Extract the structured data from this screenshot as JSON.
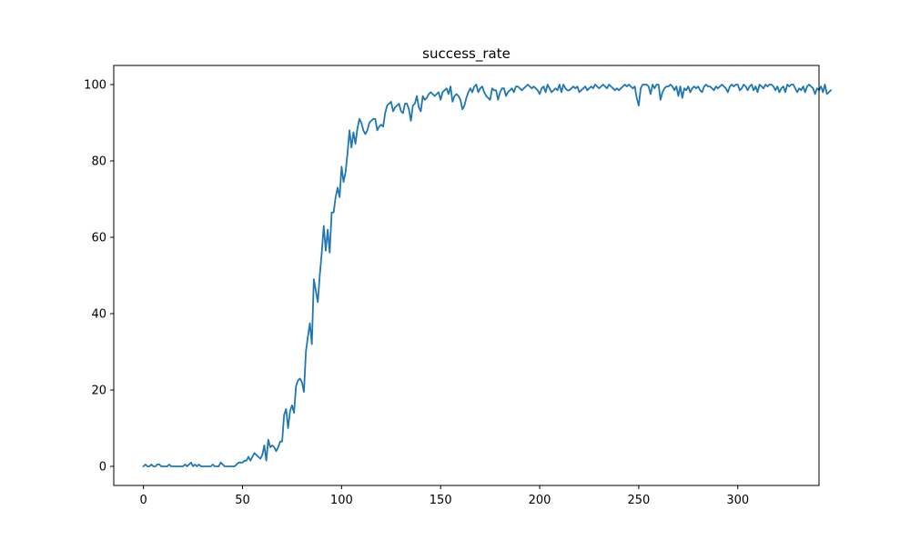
{
  "chart_data": {
    "type": "line",
    "title": "success_rate",
    "xlabel": "",
    "ylabel": "",
    "xlim": [
      -15,
      341
    ],
    "ylim": [
      -5,
      105
    ],
    "x_ticks": [
      0,
      50,
      100,
      150,
      200,
      250,
      300
    ],
    "y_ticks": [
      0,
      20,
      40,
      60,
      80,
      100
    ],
    "grid": false,
    "line_color": "#1f77b4",
    "series": [
      {
        "x_start": 0,
        "x_step": 1,
        "values": [
          0.0,
          0.5,
          0.0,
          0.0,
          0.5,
          0.0,
          0.0,
          0.5,
          0.5,
          0.0,
          0.0,
          0.0,
          0.0,
          0.5,
          0.0,
          0.0,
          0.0,
          0.0,
          0.0,
          0.0,
          0.0,
          0.5,
          0.0,
          0.5,
          1.0,
          0.0,
          0.5,
          0.0,
          0.5,
          0.0,
          0.0,
          0.0,
          0.0,
          0.0,
          0.0,
          0.5,
          0.0,
          0.0,
          0.0,
          1.0,
          0.5,
          0.0,
          0.0,
          0.0,
          0.0,
          0.0,
          0.0,
          0.5,
          1.0,
          1.0,
          1.0,
          1.5,
          1.5,
          2.5,
          1.5,
          2.5,
          3.5,
          3.0,
          2.5,
          2.0,
          3.0,
          5.5,
          1.5,
          7.0,
          5.0,
          5.5,
          5.0,
          4.0,
          5.0,
          6.5,
          6.5,
          13.5,
          15.0,
          10.0,
          14.5,
          16.0,
          14.0,
          21.0,
          22.5,
          23.0,
          22.0,
          19.5,
          30.0,
          34.0,
          37.5,
          32.0,
          49.0,
          46.0,
          43.0,
          50.0,
          56.0,
          63.0,
          56.5,
          62.0,
          56.0,
          66.5,
          66.5,
          70.5,
          73.0,
          70.5,
          78.5,
          74.5,
          77.0,
          82.0,
          88.0,
          83.5,
          87.5,
          84.5,
          88.5,
          91.0,
          90.0,
          88.0,
          87.0,
          88.0,
          90.0,
          90.5,
          91.0,
          91.0,
          88.0,
          89.0,
          89.5,
          89.0,
          92.5,
          94.5,
          95.0,
          95.5,
          93.0,
          94.0,
          94.5,
          95.0,
          93.0,
          92.5,
          95.0,
          95.0,
          93.5,
          90.5,
          94.5,
          95.0,
          97.0,
          94.0,
          93.0,
          97.0,
          96.0,
          96.5,
          97.5,
          98.0,
          97.5,
          97.0,
          97.5,
          98.0,
          96.0,
          98.0,
          98.5,
          99.0,
          97.5,
          99.5,
          95.5,
          97.0,
          97.5,
          97.0,
          96.0,
          93.5,
          94.5,
          96.5,
          98.0,
          99.0,
          98.0,
          99.5,
          100.0,
          98.0,
          99.0,
          99.5,
          98.0,
          97.0,
          96.5,
          96.0,
          99.0,
          98.5,
          98.5,
          96.0,
          98.0,
          99.0,
          99.0,
          97.0,
          98.0,
          98.5,
          99.0,
          98.0,
          99.5,
          99.5,
          99.0,
          98.5,
          99.0,
          99.5,
          100.0,
          99.5,
          99.0,
          99.5,
          99.0,
          98.5,
          97.5,
          99.0,
          99.5,
          98.0,
          100.0,
          99.0,
          98.0,
          98.5,
          99.0,
          98.5,
          100.0,
          98.0,
          100.0,
          99.0,
          98.5,
          98.5,
          99.0,
          99.5,
          99.0,
          99.5,
          98.0,
          98.5,
          99.0,
          99.5,
          98.5,
          99.0,
          99.5,
          99.0,
          100.0,
          99.5,
          99.0,
          99.5,
          100.0,
          99.5,
          99.0,
          100.0,
          99.5,
          99.0,
          98.5,
          99.0,
          98.5,
          99.0,
          99.5,
          100.0,
          99.5,
          100.0,
          99.5,
          99.0,
          99.5,
          96.5,
          94.5,
          99.0,
          100.0,
          100.0,
          100.0,
          99.5,
          97.5,
          100.0,
          99.0,
          100.0,
          100.0,
          96.0,
          98.0,
          99.0,
          99.5,
          99.5,
          100.0,
          99.5,
          98.5,
          99.5,
          97.0,
          99.5,
          96.5,
          99.0,
          98.5,
          99.5,
          98.0,
          99.0,
          99.5,
          99.0,
          99.5,
          98.5,
          98.0,
          99.5,
          100.0,
          99.5,
          99.5,
          99.0,
          98.5,
          99.5,
          99.0,
          99.5,
          100.0,
          99.5,
          99.0,
          98.0,
          99.5,
          100.0,
          99.5,
          100.0,
          100.0,
          98.5,
          99.0,
          100.0,
          99.5,
          98.5,
          99.5,
          100.0,
          98.5,
          99.5,
          98.0,
          100.0,
          99.5,
          99.0,
          100.0,
          99.5,
          100.0,
          100.0,
          99.5,
          98.5,
          99.5,
          98.0,
          99.0,
          99.5,
          98.0,
          100.0,
          99.5,
          100.0,
          100.0,
          99.0,
          98.0,
          99.0,
          98.5,
          99.5,
          98.0,
          99.5,
          100.0,
          99.5,
          99.0,
          97.5,
          99.0,
          98.5,
          99.5,
          98.0,
          100.0,
          97.5,
          98.0,
          98.5
        ]
      }
    ]
  }
}
